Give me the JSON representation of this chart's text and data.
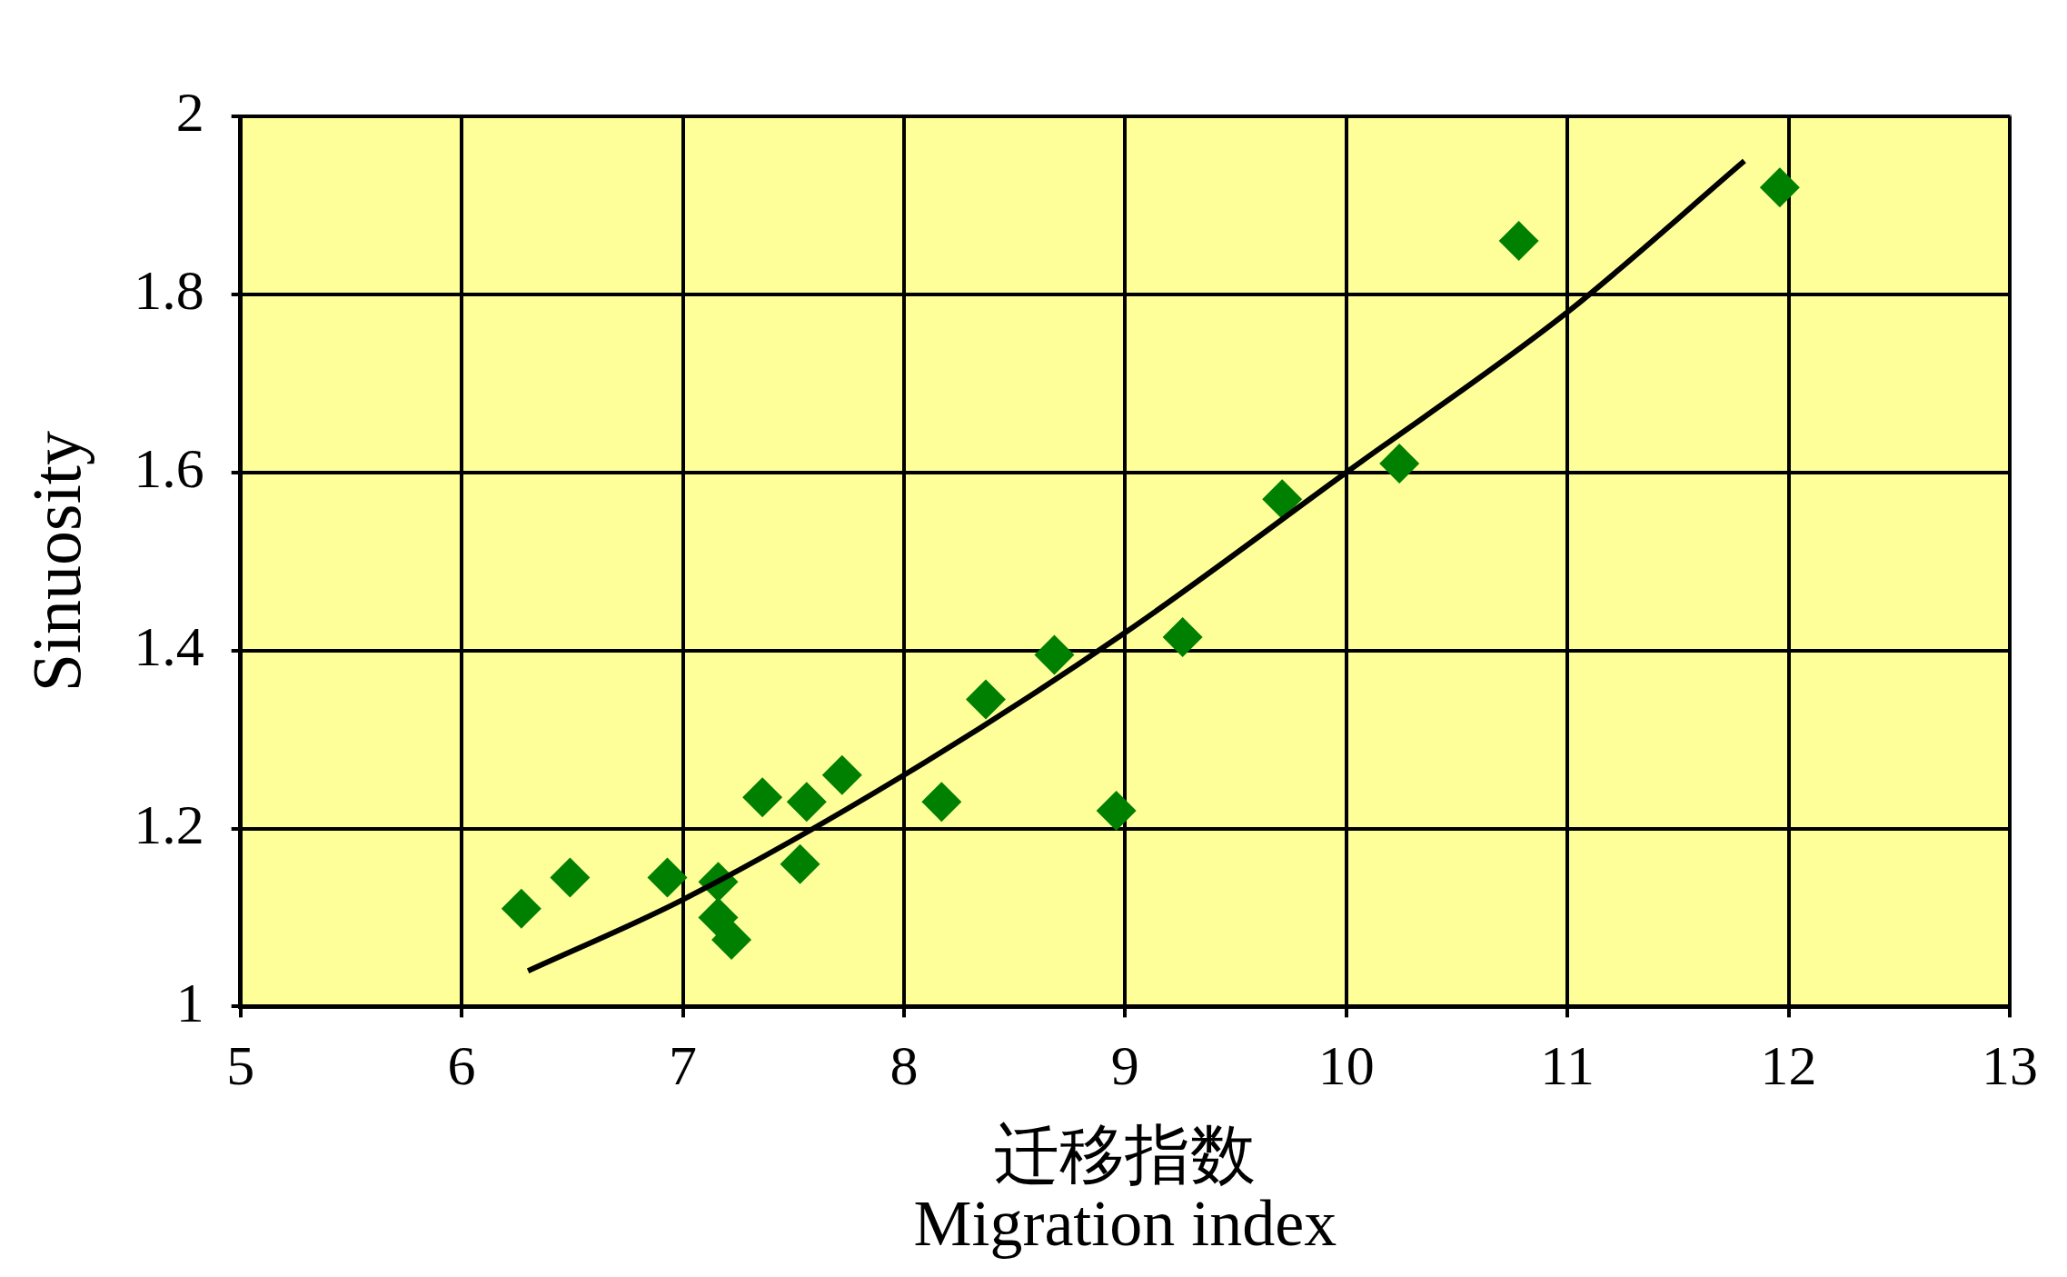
{
  "chart_data": {
    "type": "scatter",
    "xlabel": "迁移指数\nMigration index",
    "ylabel": "Sinuosity",
    "xlim": [
      5,
      13
    ],
    "xticks": [
      5,
      6,
      7,
      8,
      9,
      10,
      11,
      12,
      13
    ],
    "ylim": [
      1,
      2
    ],
    "yticks": [
      1,
      1.2,
      1.4,
      1.6,
      1.8,
      2
    ],
    "grid": true,
    "marker": "diamond",
    "series": [
      {
        "type": "scatter",
        "color": "#008000",
        "x": [
          6.27,
          6.49,
          6.93,
          7.16,
          7.16,
          7.22,
          7.36,
          7.53,
          7.56,
          7.72,
          8.17,
          8.37,
          8.68,
          8.96,
          9.26,
          9.71,
          10.24,
          10.78,
          11.96
        ],
        "values": [
          1.11,
          1.145,
          1.145,
          1.14,
          1.1,
          1.075,
          1.235,
          1.16,
          1.23,
          1.26,
          1.23,
          1.345,
          1.395,
          1.22,
          1.415,
          1.57,
          1.61,
          1.86,
          1.92
        ]
      },
      {
        "type": "line",
        "color": "#000000",
        "marker": "none",
        "line_style": "solid",
        "x": [
          6.3,
          7,
          8,
          9,
          10,
          11,
          11.8
        ],
        "values": [
          1.04,
          1.12,
          1.26,
          1.42,
          1.6,
          1.78,
          1.95
        ]
      }
    ]
  }
}
